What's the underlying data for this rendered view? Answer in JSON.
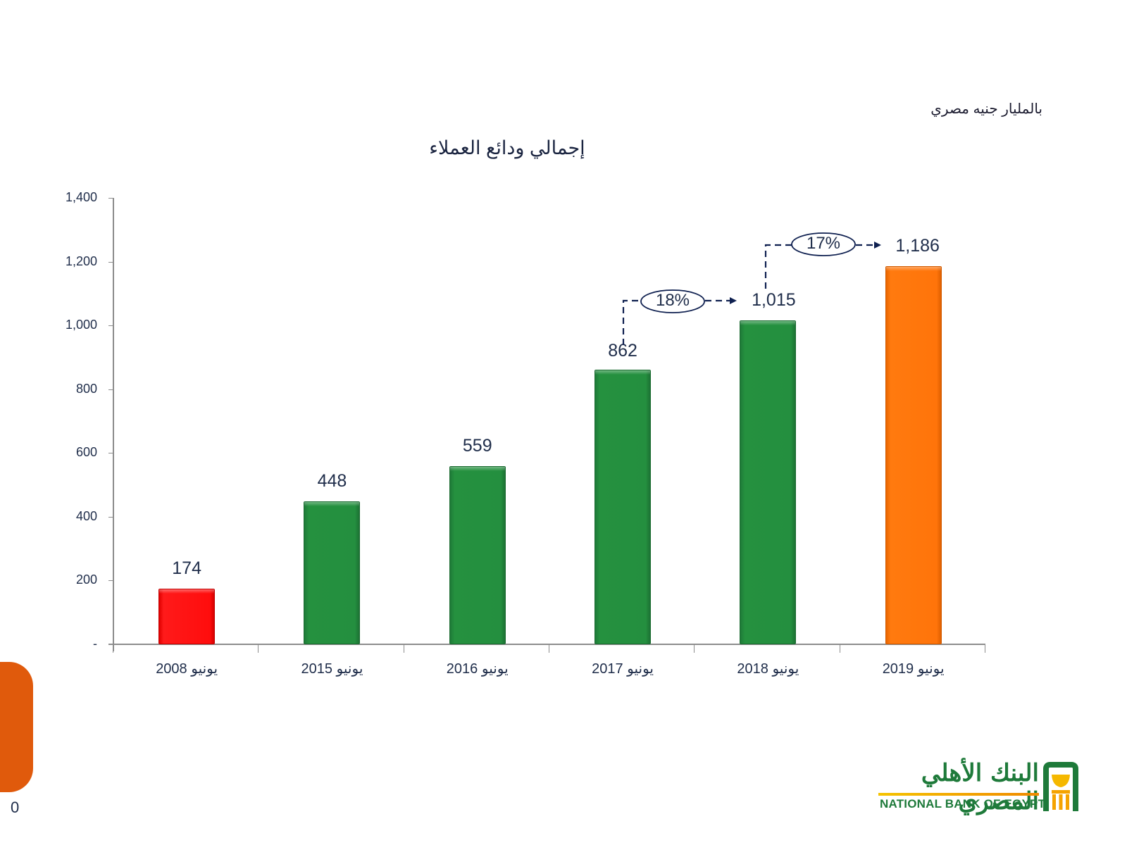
{
  "header": {
    "unit_note": "بالمليار جنيه مصري",
    "title": "إجمالي ودائع العملاء"
  },
  "chart_data": {
    "type": "bar",
    "title": "إجمالي ودائع العملاء",
    "unit": "بالمليار جنيه مصري",
    "xlabel": "",
    "ylabel": "",
    "ylim": [
      0,
      1400
    ],
    "y_ticks": [
      "-",
      "200",
      "400",
      "600",
      "800",
      "1,000",
      "1,200",
      "1,400"
    ],
    "grid": false,
    "legend": null,
    "categories": [
      "يونيو 2008",
      "يونيو 2015",
      "يونيو 2016",
      "يونيو 2017",
      "يونيو 2018",
      "يونيو 2019"
    ],
    "values": [
      174,
      448,
      559,
      862,
      1015,
      1186
    ],
    "value_labels": [
      "174",
      "448",
      "559",
      "862",
      "1,015",
      "1,186"
    ],
    "bar_colors": [
      "#ff0d0d",
      "#248f3f",
      "#248f3f",
      "#248f3f",
      "#248f3f",
      "#ff740a"
    ],
    "annotations": [
      {
        "from": "يونيو 2017",
        "to": "يونيو 2018",
        "label": "18%"
      },
      {
        "from": "يونيو 2018",
        "to": "يونيو 2019",
        "label": "17%"
      }
    ]
  },
  "x_axis": {
    "month": "يونيو",
    "years": [
      "2008",
      "2015",
      "2016",
      "2017",
      "2018",
      "2019"
    ]
  },
  "footer": {
    "page_number": "0",
    "logo_arabic": "البنك الأهلي المصري",
    "logo_english": "NATIONAL BANK OF EGYPT"
  },
  "colors": {
    "accent_orange": "#e05a0c",
    "brand_green": "#1e7a3a",
    "text_navy": "#1f2d4a"
  }
}
